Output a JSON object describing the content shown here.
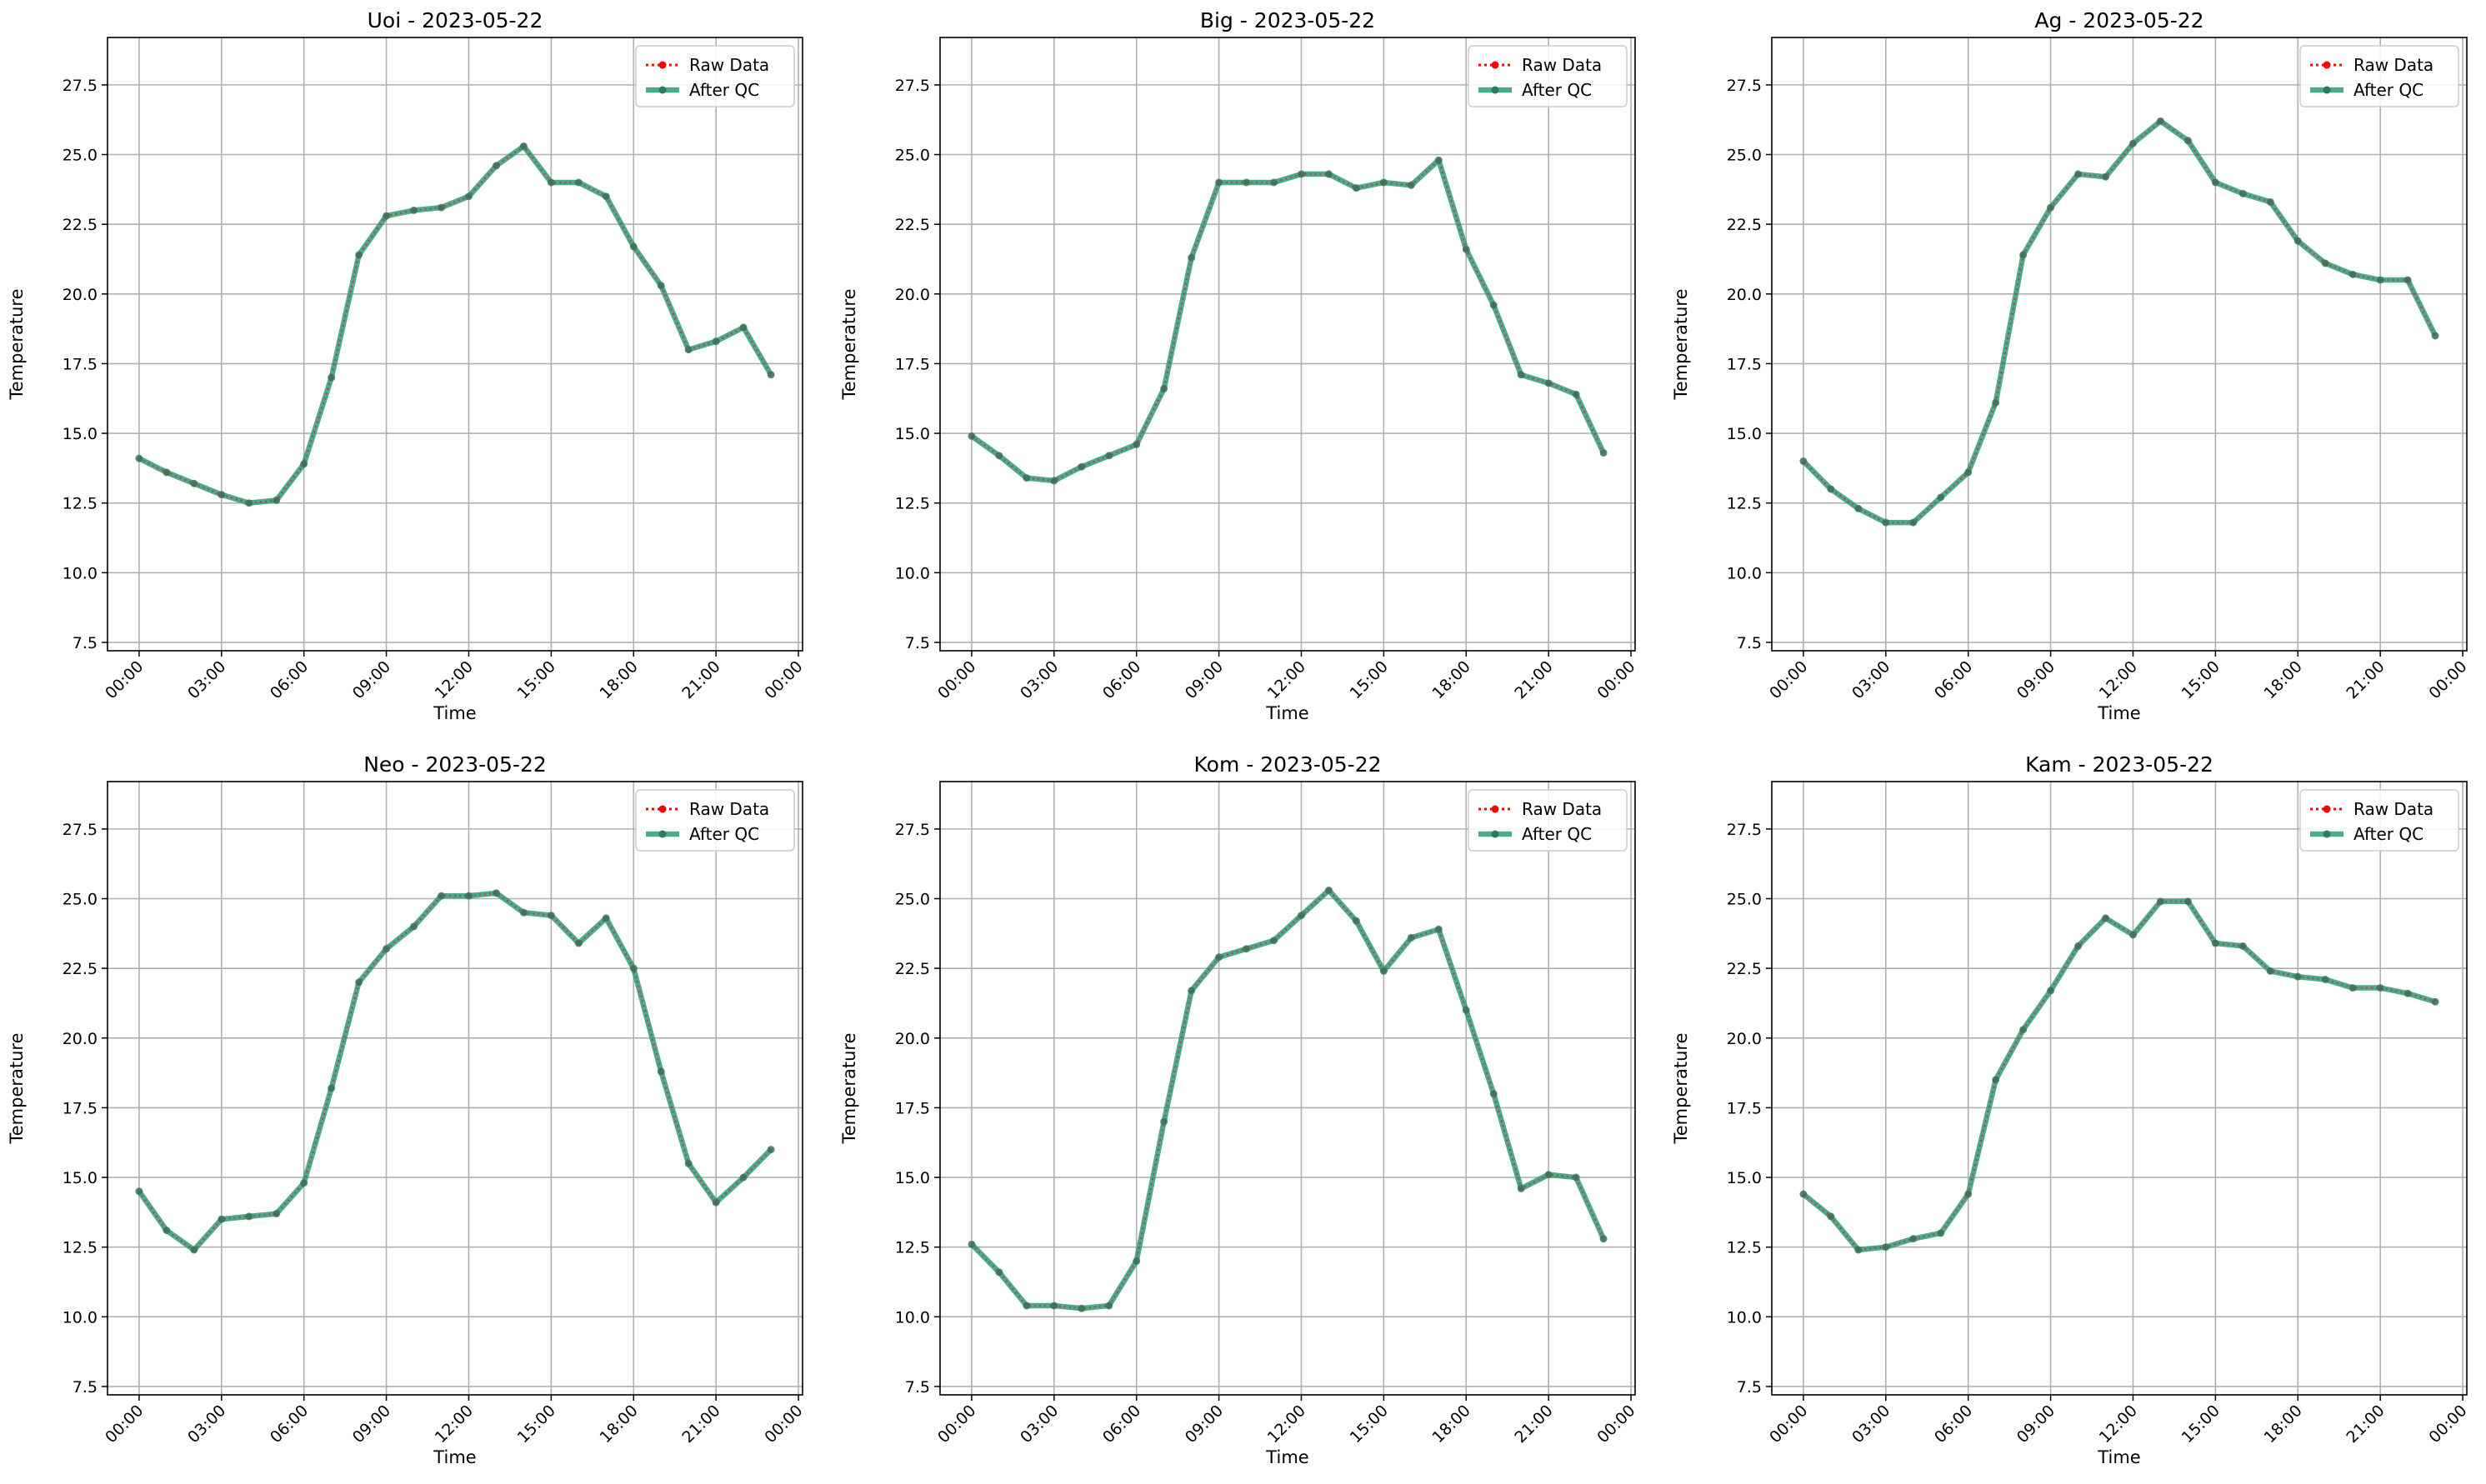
{
  "colors": {
    "raw": "#ff0000",
    "qc": "#2a9d78",
    "qc_marker": "#2f7a5f",
    "grid": "#b0b0b0"
  },
  "legend": {
    "raw_label": "Raw Data",
    "qc_label": "After QC",
    "placement": "upper right"
  },
  "chart_data": [
    {
      "type": "line",
      "title": "Uoi - 2023-05-22",
      "xlabel": "Time",
      "ylabel": "Temperature",
      "xlim": [
        -1.15,
        24.15
      ],
      "ylim": [
        7.2,
        29.2
      ],
      "grid": true,
      "x_ticks": [
        0,
        3,
        6,
        9,
        12,
        15,
        18,
        21,
        24
      ],
      "x_tick_labels": [
        "00:00",
        "03:00",
        "06:00",
        "09:00",
        "12:00",
        "15:00",
        "18:00",
        "21:00",
        "00:00"
      ],
      "y_ticks": [
        7.5,
        10,
        12.5,
        15,
        17.5,
        20,
        22.5,
        25,
        27.5
      ],
      "y_tick_labels": [
        "7.5",
        "10.0",
        "12.5",
        "15.0",
        "17.5",
        "20.0",
        "22.5",
        "25.0",
        "27.5"
      ],
      "x": [
        0,
        1,
        2,
        3,
        4,
        5,
        6,
        7,
        8,
        9,
        10,
        11,
        12,
        13,
        14,
        15,
        16,
        17,
        18,
        19,
        20,
        21,
        22,
        23
      ],
      "series": [
        {
          "name": "Raw Data",
          "values": [
            14.1,
            13.6,
            13.2,
            12.8,
            12.5,
            12.6,
            13.9,
            17.0,
            21.4,
            22.8,
            23.0,
            23.1,
            23.5,
            24.6,
            25.3,
            24.0,
            24.0,
            23.5,
            21.7,
            20.3,
            18.0,
            18.3,
            18.8,
            17.1
          ]
        },
        {
          "name": "After QC",
          "values": [
            14.1,
            13.6,
            13.2,
            12.8,
            12.5,
            12.6,
            13.9,
            17.0,
            21.4,
            22.8,
            23.0,
            23.1,
            23.5,
            24.6,
            25.3,
            24.0,
            24.0,
            23.5,
            21.7,
            20.3,
            18.0,
            18.3,
            18.8,
            17.1
          ]
        }
      ]
    },
    {
      "type": "line",
      "title": "Big - 2023-05-22",
      "xlabel": "Time",
      "ylabel": "Temperature",
      "xlim": [
        -1.15,
        24.15
      ],
      "ylim": [
        7.2,
        29.2
      ],
      "grid": true,
      "x_ticks": [
        0,
        3,
        6,
        9,
        12,
        15,
        18,
        21,
        24
      ],
      "x_tick_labels": [
        "00:00",
        "03:00",
        "06:00",
        "09:00",
        "12:00",
        "15:00",
        "18:00",
        "21:00",
        "00:00"
      ],
      "y_ticks": [
        7.5,
        10,
        12.5,
        15,
        17.5,
        20,
        22.5,
        25,
        27.5
      ],
      "y_tick_labels": [
        "7.5",
        "10.0",
        "12.5",
        "15.0",
        "17.5",
        "20.0",
        "22.5",
        "25.0",
        "27.5"
      ],
      "x": [
        0,
        1,
        2,
        3,
        4,
        5,
        6,
        7,
        8,
        9,
        10,
        11,
        12,
        13,
        14,
        15,
        16,
        17,
        18,
        19,
        20,
        21,
        22,
        23
      ],
      "series": [
        {
          "name": "Raw Data",
          "values": [
            14.9,
            14.2,
            13.4,
            13.3,
            13.8,
            14.2,
            14.6,
            16.6,
            21.3,
            24.0,
            24.0,
            24.0,
            24.3,
            24.3,
            23.8,
            24.0,
            23.9,
            24.8,
            21.6,
            19.6,
            17.1,
            16.8,
            16.4,
            14.3
          ]
        },
        {
          "name": "After QC",
          "values": [
            14.9,
            14.2,
            13.4,
            13.3,
            13.8,
            14.2,
            14.6,
            16.6,
            21.3,
            24.0,
            24.0,
            24.0,
            24.3,
            24.3,
            23.8,
            24.0,
            23.9,
            24.8,
            21.6,
            19.6,
            17.1,
            16.8,
            16.4,
            14.3
          ]
        }
      ]
    },
    {
      "type": "line",
      "title": "Ag - 2023-05-22",
      "xlabel": "Time",
      "ylabel": "Temperature",
      "xlim": [
        -1.15,
        24.15
      ],
      "ylim": [
        7.2,
        29.2
      ],
      "grid": true,
      "x_ticks": [
        0,
        3,
        6,
        9,
        12,
        15,
        18,
        21,
        24
      ],
      "x_tick_labels": [
        "00:00",
        "03:00",
        "06:00",
        "09:00",
        "12:00",
        "15:00",
        "18:00",
        "21:00",
        "00:00"
      ],
      "y_ticks": [
        7.5,
        10,
        12.5,
        15,
        17.5,
        20,
        22.5,
        25,
        27.5
      ],
      "y_tick_labels": [
        "7.5",
        "10.0",
        "12.5",
        "15.0",
        "17.5",
        "20.0",
        "22.5",
        "25.0",
        "27.5"
      ],
      "x": [
        0,
        1,
        2,
        3,
        4,
        5,
        6,
        7,
        8,
        9,
        10,
        11,
        12,
        13,
        14,
        15,
        16,
        17,
        18,
        19,
        20,
        21,
        22,
        23
      ],
      "series": [
        {
          "name": "Raw Data",
          "values": [
            14.0,
            13.0,
            12.3,
            11.8,
            11.8,
            12.7,
            13.6,
            16.1,
            21.4,
            23.1,
            24.3,
            24.2,
            25.4,
            26.2,
            25.5,
            24.0,
            23.6,
            23.3,
            21.9,
            21.1,
            20.7,
            20.5,
            20.5,
            18.5
          ]
        },
        {
          "name": "After QC",
          "values": [
            14.0,
            13.0,
            12.3,
            11.8,
            11.8,
            12.7,
            13.6,
            16.1,
            21.4,
            23.1,
            24.3,
            24.2,
            25.4,
            26.2,
            25.5,
            24.0,
            23.6,
            23.3,
            21.9,
            21.1,
            20.7,
            20.5,
            20.5,
            18.5
          ]
        }
      ]
    },
    {
      "type": "line",
      "title": "Neo - 2023-05-22",
      "xlabel": "Time",
      "ylabel": "Temperature",
      "xlim": [
        -1.15,
        24.15
      ],
      "ylim": [
        7.2,
        29.2
      ],
      "grid": true,
      "x_ticks": [
        0,
        3,
        6,
        9,
        12,
        15,
        18,
        21,
        24
      ],
      "x_tick_labels": [
        "00:00",
        "03:00",
        "06:00",
        "09:00",
        "12:00",
        "15:00",
        "18:00",
        "21:00",
        "00:00"
      ],
      "y_ticks": [
        7.5,
        10,
        12.5,
        15,
        17.5,
        20,
        22.5,
        25,
        27.5
      ],
      "y_tick_labels": [
        "7.5",
        "10.0",
        "12.5",
        "15.0",
        "17.5",
        "20.0",
        "22.5",
        "25.0",
        "27.5"
      ],
      "x": [
        0,
        1,
        2,
        3,
        4,
        5,
        6,
        7,
        8,
        9,
        10,
        11,
        12,
        13,
        14,
        15,
        16,
        17,
        18,
        19,
        20,
        21,
        22,
        23
      ],
      "series": [
        {
          "name": "Raw Data",
          "values": [
            14.5,
            13.1,
            12.4,
            13.5,
            13.6,
            13.7,
            14.8,
            18.2,
            22.0,
            23.2,
            24.0,
            25.1,
            25.1,
            25.2,
            24.5,
            24.4,
            23.4,
            24.3,
            22.5,
            18.8,
            15.5,
            14.1,
            15.0,
            16.0
          ]
        },
        {
          "name": "After QC",
          "values": [
            14.5,
            13.1,
            12.4,
            13.5,
            13.6,
            13.7,
            14.8,
            18.2,
            22.0,
            23.2,
            24.0,
            25.1,
            25.1,
            25.2,
            24.5,
            24.4,
            23.4,
            24.3,
            22.5,
            18.8,
            15.5,
            14.1,
            15.0,
            16.0
          ]
        }
      ]
    },
    {
      "type": "line",
      "title": "Kom - 2023-05-22",
      "xlabel": "Time",
      "ylabel": "Temperature",
      "xlim": [
        -1.15,
        24.15
      ],
      "ylim": [
        7.2,
        29.2
      ],
      "grid": true,
      "x_ticks": [
        0,
        3,
        6,
        9,
        12,
        15,
        18,
        21,
        24
      ],
      "x_tick_labels": [
        "00:00",
        "03:00",
        "06:00",
        "09:00",
        "12:00",
        "15:00",
        "18:00",
        "21:00",
        "00:00"
      ],
      "y_ticks": [
        7.5,
        10,
        12.5,
        15,
        17.5,
        20,
        22.5,
        25,
        27.5
      ],
      "y_tick_labels": [
        "7.5",
        "10.0",
        "12.5",
        "15.0",
        "17.5",
        "20.0",
        "22.5",
        "25.0",
        "27.5"
      ],
      "x": [
        0,
        1,
        2,
        3,
        4,
        5,
        6,
        7,
        8,
        9,
        10,
        11,
        12,
        13,
        14,
        15,
        16,
        17,
        18,
        19,
        20,
        21,
        22,
        23
      ],
      "series": [
        {
          "name": "Raw Data",
          "values": [
            12.6,
            11.6,
            10.4,
            10.4,
            10.3,
            10.4,
            12.0,
            17.0,
            21.7,
            22.9,
            23.2,
            23.5,
            24.4,
            25.3,
            24.2,
            22.4,
            23.6,
            23.9,
            21.0,
            18.0,
            14.6,
            15.1,
            15.0,
            12.8
          ]
        },
        {
          "name": "After QC",
          "values": [
            12.6,
            11.6,
            10.4,
            10.4,
            10.3,
            10.4,
            12.0,
            17.0,
            21.7,
            22.9,
            23.2,
            23.5,
            24.4,
            25.3,
            24.2,
            22.4,
            23.6,
            23.9,
            21.0,
            18.0,
            14.6,
            15.1,
            15.0,
            12.8
          ]
        }
      ]
    },
    {
      "type": "line",
      "title": "Kam - 2023-05-22",
      "xlabel": "Time",
      "ylabel": "Temperature",
      "xlim": [
        -1.15,
        24.15
      ],
      "ylim": [
        7.2,
        29.2
      ],
      "grid": true,
      "x_ticks": [
        0,
        3,
        6,
        9,
        12,
        15,
        18,
        21,
        24
      ],
      "x_tick_labels": [
        "00:00",
        "03:00",
        "06:00",
        "09:00",
        "12:00",
        "15:00",
        "18:00",
        "21:00",
        "00:00"
      ],
      "y_ticks": [
        7.5,
        10,
        12.5,
        15,
        17.5,
        20,
        22.5,
        25,
        27.5
      ],
      "y_tick_labels": [
        "7.5",
        "10.0",
        "12.5",
        "15.0",
        "17.5",
        "20.0",
        "22.5",
        "25.0",
        "27.5"
      ],
      "x": [
        0,
        1,
        2,
        3,
        4,
        5,
        6,
        7,
        8,
        9,
        10,
        11,
        12,
        13,
        14,
        15,
        16,
        17,
        18,
        19,
        20,
        21,
        22,
        23
      ],
      "series": [
        {
          "name": "Raw Data",
          "values": [
            14.4,
            13.6,
            12.4,
            12.5,
            12.8,
            13.0,
            14.4,
            18.5,
            20.3,
            21.7,
            23.3,
            24.3,
            23.7,
            24.9,
            24.9,
            23.4,
            23.3,
            22.4,
            22.2,
            22.1,
            21.8,
            21.8,
            21.6,
            21.3
          ]
        },
        {
          "name": "After QC",
          "values": [
            14.4,
            13.6,
            12.4,
            12.5,
            12.8,
            13.0,
            14.4,
            18.5,
            20.3,
            21.7,
            23.3,
            24.3,
            23.7,
            24.9,
            24.9,
            23.4,
            23.3,
            22.4,
            22.2,
            22.1,
            21.8,
            21.8,
            21.6,
            21.3
          ]
        }
      ]
    }
  ]
}
